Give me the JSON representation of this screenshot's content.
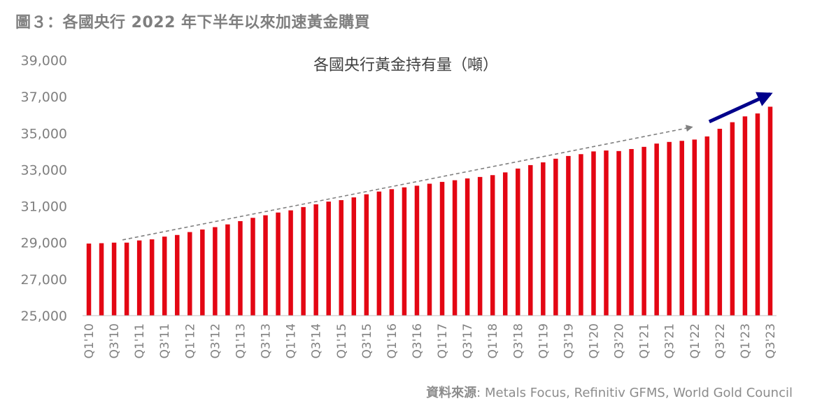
{
  "figure": {
    "title": "圖３：各國央行 2022 年下半年以來加速黃金購買",
    "source_label": "資料來源",
    "source_sep": ":",
    "source_text": "Metals Focus, Refinitiv GFMS, World Gold Council"
  },
  "chart_data": {
    "type": "bar",
    "title": "各國央行黃金持有量（噸）",
    "xlabel": "",
    "ylabel": "",
    "ylim": [
      25000,
      39000
    ],
    "yticks": [
      25000,
      27000,
      29000,
      31000,
      33000,
      35000,
      37000,
      39000
    ],
    "ytick_labels": [
      "25,000",
      "27,000",
      "29,000",
      "31,000",
      "33,000",
      "35,000",
      "37,000",
      "39,000"
    ],
    "categories": [
      "Q1'10",
      "Q2'10",
      "Q3'10",
      "Q4'10",
      "Q1'11",
      "Q2'11",
      "Q3'11",
      "Q4'11",
      "Q1'12",
      "Q2'12",
      "Q3'12",
      "Q4'12",
      "Q1'13",
      "Q2'13",
      "Q3'13",
      "Q4'13",
      "Q1'14",
      "Q2'14",
      "Q3'14",
      "Q4'14",
      "Q1'15",
      "Q2'15",
      "Q3'15",
      "Q4'15",
      "Q1'16",
      "Q2'16",
      "Q3'16",
      "Q4'16",
      "Q1'17",
      "Q2'17",
      "Q3'17",
      "Q4'17",
      "Q1'18",
      "Q2'18",
      "Q3'18",
      "Q4'18",
      "Q1'19",
      "Q2'19",
      "Q3'19",
      "Q4'19",
      "Q1'20",
      "Q2'20",
      "Q3'20",
      "Q4'20",
      "Q1'21",
      "Q2'21",
      "Q3'21",
      "Q4'21",
      "Q1'22",
      "Q2'22",
      "Q3'22",
      "Q4'22",
      "Q1'23",
      "Q2'23",
      "Q3'23"
    ],
    "xtick_labels": [
      "Q1'10",
      "Q3'10",
      "Q1'11",
      "Q3'11",
      "Q1'12",
      "Q3'12",
      "Q1'13",
      "Q3'13",
      "Q1'14",
      "Q3'14",
      "Q1'15",
      "Q3'15",
      "Q1'16",
      "Q3'16",
      "Q1'17",
      "Q3'17",
      "Q1'18",
      "Q3'18",
      "Q1'19",
      "Q3'19",
      "Q1'20",
      "Q3'20",
      "Q1'21",
      "Q3'21",
      "Q1'22",
      "Q3'22",
      "Q1'23",
      "Q3'23"
    ],
    "values": [
      28950,
      28970,
      29000,
      29000,
      29120,
      29180,
      29330,
      29420,
      29580,
      29720,
      29850,
      30000,
      30180,
      30360,
      30500,
      30650,
      30770,
      30950,
      31100,
      31250,
      31330,
      31480,
      31650,
      31800,
      31930,
      32030,
      32120,
      32230,
      32330,
      32420,
      32520,
      32600,
      32700,
      32850,
      33060,
      33250,
      33400,
      33600,
      33750,
      33850,
      34000,
      34050,
      34020,
      34130,
      34250,
      34430,
      34520,
      34580,
      34650,
      34820,
      35240,
      35600,
      35920,
      36080,
      36450
    ],
    "bar_color": "#e30613",
    "trend_arrow_color": "#808080",
    "accel_arrow_color": "#00008b",
    "grid": false,
    "legend": "none"
  }
}
